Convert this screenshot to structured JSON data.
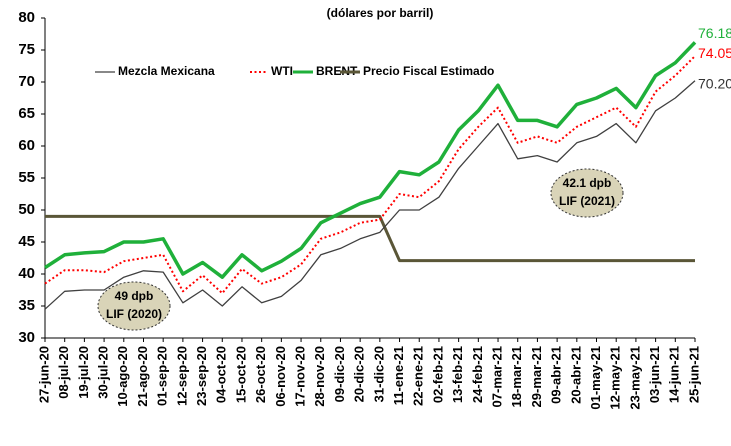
{
  "chart_data": {
    "type": "line",
    "title": "(dólares por barril)",
    "categories": [
      "27-jun-20",
      "08-jul-20",
      "19-jul-20",
      "30-jul-20",
      "10-ago-20",
      "21-ago-20",
      "01-sep-20",
      "12-sep-20",
      "23-sep-20",
      "04-oct-20",
      "15-oct-20",
      "26-oct-20",
      "06-nov-20",
      "17-nov-20",
      "28-nov-20",
      "09-dic-20",
      "20-dic-20",
      "31-dic-20",
      "11-ene-21",
      "22-ene-21",
      "02-feb-21",
      "13-feb-21",
      "24-feb-21",
      "07-mar-21",
      "18-mar-21",
      "29-mar-21",
      "09-abr-21",
      "20-abr-21",
      "01-may-21",
      "12-may-21",
      "23-may-21",
      "03-jun-21",
      "14-jun-21",
      "25-jun-21"
    ],
    "series": [
      {
        "name": "Mezcla Mexicana",
        "color": "#404040",
        "linestyle": "solid",
        "width": 1.3,
        "values": [
          34.5,
          37.3,
          37.5,
          37.5,
          39.5,
          40.5,
          40.3,
          35.5,
          37.5,
          35.0,
          38.0,
          35.5,
          36.5,
          39.0,
          43.0,
          44.0,
          45.5,
          46.5,
          50.0,
          50.0,
          52.0,
          56.5,
          60.0,
          63.5,
          58.0,
          58.5,
          57.5,
          60.5,
          61.5,
          63.5,
          60.5,
          65.5,
          67.5,
          70.2
        ],
        "value_labels": [
          null,
          null,
          null,
          null,
          null,
          null,
          null,
          null,
          null,
          null,
          null,
          null,
          null,
          null,
          null,
          null,
          null,
          null,
          null,
          null,
          null,
          null,
          null,
          null,
          null,
          null,
          null,
          null,
          null,
          null,
          null,
          null,
          null,
          "70.20"
        ]
      },
      {
        "name": "WTI",
        "color": "#ff0000",
        "linestyle": "dotted",
        "width": 2,
        "values": [
          38.5,
          40.6,
          40.6,
          40.3,
          42.0,
          42.5,
          43.0,
          37.3,
          39.8,
          37.0,
          40.8,
          38.5,
          39.5,
          41.5,
          45.5,
          46.5,
          48.0,
          48.5,
          52.5,
          52.0,
          54.5,
          59.5,
          63.0,
          66.0,
          60.5,
          61.5,
          60.5,
          63.0,
          64.5,
          66.0,
          63.0,
          68.5,
          71.0,
          74.05
        ],
        "value_labels": [
          null,
          null,
          null,
          null,
          null,
          null,
          null,
          null,
          null,
          null,
          null,
          null,
          null,
          null,
          null,
          null,
          null,
          null,
          null,
          null,
          null,
          null,
          null,
          null,
          null,
          null,
          null,
          null,
          null,
          null,
          null,
          null,
          null,
          "74.05"
        ]
      },
      {
        "name": "BRENT",
        "color": "#1fb03a",
        "linestyle": "solid",
        "width": 3.5,
        "values": [
          41.0,
          43.0,
          43.3,
          43.5,
          45.0,
          45.0,
          45.5,
          40.0,
          41.8,
          39.5,
          43.0,
          40.5,
          42.0,
          44.0,
          48.0,
          49.5,
          51.0,
          52.0,
          56.0,
          55.5,
          57.5,
          62.5,
          65.5,
          69.5,
          64.0,
          64.0,
          63.0,
          66.5,
          67.5,
          69.0,
          66.0,
          71.0,
          73.0,
          76.18
        ],
        "value_labels": [
          null,
          null,
          null,
          null,
          null,
          null,
          null,
          null,
          null,
          null,
          null,
          null,
          null,
          null,
          null,
          null,
          null,
          null,
          null,
          null,
          null,
          null,
          null,
          null,
          null,
          null,
          null,
          null,
          null,
          null,
          null,
          null,
          null,
          "76.18"
        ]
      },
      {
        "name": "Precio Fiscal Estimado",
        "color": "#5a5637",
        "linestyle": "solid",
        "width": 3,
        "values": [
          49,
          49,
          49,
          49,
          49,
          49,
          49,
          49,
          49,
          49,
          49,
          49,
          49,
          49,
          49,
          49,
          49,
          49,
          42.1,
          42.1,
          42.1,
          42.1,
          42.1,
          42.1,
          42.1,
          42.1,
          42.1,
          42.1,
          42.1,
          42.1,
          42.1,
          42.1,
          42.1,
          42.1
        ]
      }
    ],
    "annotations": [
      {
        "lines": [
          "49 dpb",
          "LIF (2020)"
        ]
      },
      {
        "lines": [
          "42.1 dpb",
          "LIF (2021)"
        ]
      }
    ],
    "ylim": [
      30,
      80
    ],
    "yticks": [
      30,
      35,
      40,
      45,
      50,
      55,
      60,
      65,
      70,
      75,
      80
    ],
    "grid": false,
    "legend": "top-left"
  }
}
